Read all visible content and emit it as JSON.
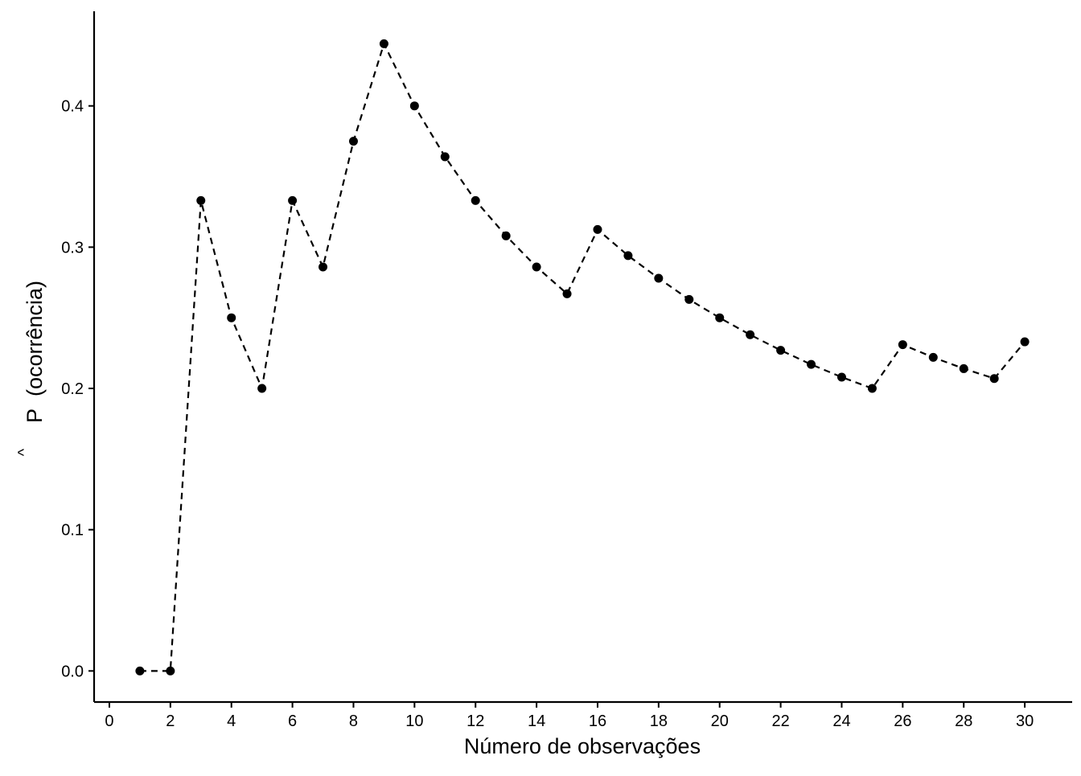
{
  "chart_data": {
    "type": "line",
    "title": "",
    "xlabel": "Número de observações",
    "ylabel": "(ocorrência)",
    "ylabel_symbol": "P",
    "ylabel_accent": "^",
    "xlim": [
      -0.5,
      31.5
    ],
    "ylim": [
      -0.022,
      0.467
    ],
    "x_ticks": [
      0,
      2,
      4,
      6,
      8,
      10,
      12,
      14,
      16,
      18,
      20,
      22,
      24,
      26,
      28,
      30
    ],
    "x_tick_labels": [
      "0",
      "2",
      "4",
      "6",
      "8",
      "10",
      "12",
      "14",
      "16",
      "18",
      "20",
      "22",
      "24",
      "26",
      "28",
      "30"
    ],
    "y_ticks": [
      0,
      0.1,
      0.2,
      0.3,
      0.4
    ],
    "y_tick_labels": [
      "0.0",
      "0.1",
      "0.2",
      "0.3",
      "0.4"
    ],
    "grid": false,
    "line_style": "dashed",
    "marker": "filled-circle",
    "series": [
      {
        "x": [
          1,
          2,
          3,
          4,
          5,
          6,
          7,
          8,
          9,
          10,
          11,
          12,
          13,
          14,
          15,
          16,
          17,
          18,
          19,
          20,
          21,
          22,
          23,
          24,
          25,
          26,
          27,
          28,
          29,
          30
        ],
        "values": [
          0.0,
          0.0,
          0.333,
          0.25,
          0.2,
          0.333,
          0.286,
          0.375,
          0.444,
          0.4,
          0.364,
          0.333,
          0.308,
          0.286,
          0.267,
          0.3125,
          0.294,
          0.278,
          0.263,
          0.25,
          0.238,
          0.227,
          0.217,
          0.208,
          0.2,
          0.231,
          0.222,
          0.214,
          0.207,
          0.233
        ]
      }
    ],
    "colors": {
      "line": "#000000",
      "points": "#000000",
      "axis": "#000000",
      "background": "#ffffff"
    }
  }
}
